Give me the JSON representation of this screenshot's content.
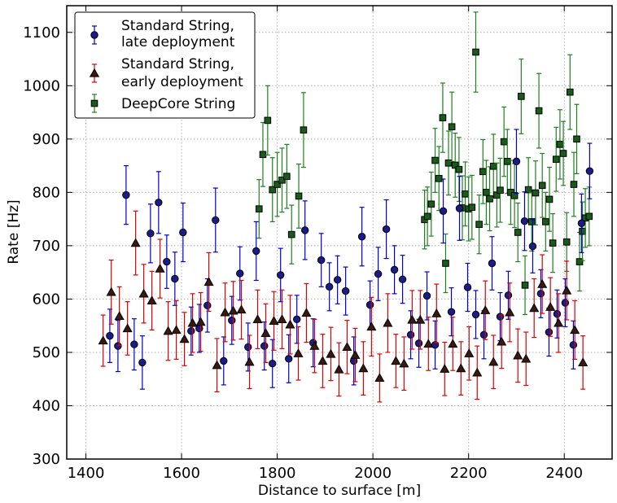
{
  "chart_data": {
    "type": "scatter",
    "xlabel": "Distance to surface [m]",
    "ylabel": "Rate [Hz]",
    "xlim": [
      1360,
      2500
    ],
    "ylim": [
      300,
      1150
    ],
    "xticks": [
      1400,
      1600,
      1800,
      2000,
      2200,
      2400
    ],
    "yticks": [
      300,
      400,
      500,
      600,
      700,
      800,
      900,
      1000,
      1100
    ],
    "grid": true,
    "legend": "top-left",
    "series": [
      {
        "name": "Standard String,\n late deployment",
        "legend_lines": [
          "Standard String,",
          " late deployment"
        ],
        "marker": "circle",
        "fill": "#1b1b8c",
        "error_color": "#0000cc",
        "points": [
          {
            "x": 1450,
            "y": 531,
            "err": 50
          },
          {
            "x": 1467,
            "y": 512,
            "err": 48
          },
          {
            "x": 1484,
            "y": 795,
            "err": 55
          },
          {
            "x": 1501,
            "y": 515,
            "err": 48
          },
          {
            "x": 1518,
            "y": 481,
            "err": 50
          },
          {
            "x": 1535,
            "y": 723,
            "err": 55
          },
          {
            "x": 1552,
            "y": 781,
            "err": 58
          },
          {
            "x": 1569,
            "y": 670,
            "err": 50
          },
          {
            "x": 1586,
            "y": 638,
            "err": 50
          },
          {
            "x": 1603,
            "y": 725,
            "err": 55
          },
          {
            "x": 1620,
            "y": 540,
            "err": 45
          },
          {
            "x": 1637,
            "y": 545,
            "err": 45
          },
          {
            "x": 1654,
            "y": 588,
            "err": 50
          },
          {
            "x": 1671,
            "y": 748,
            "err": 60
          },
          {
            "x": 1688,
            "y": 484,
            "err": 45
          },
          {
            "x": 1705,
            "y": 560,
            "err": 45
          },
          {
            "x": 1722,
            "y": 648,
            "err": 50
          },
          {
            "x": 1739,
            "y": 510,
            "err": 45
          },
          {
            "x": 1756,
            "y": 690,
            "err": 55
          },
          {
            "x": 1773,
            "y": 512,
            "err": 45
          },
          {
            "x": 1790,
            "y": 479,
            "err": 45
          },
          {
            "x": 1807,
            "y": 645,
            "err": 50
          },
          {
            "x": 1824,
            "y": 488,
            "err": 45
          },
          {
            "x": 1841,
            "y": 562,
            "err": 45
          },
          {
            "x": 1858,
            "y": 729,
            "err": 55
          },
          {
            "x": 1875,
            "y": 518,
            "err": 45
          },
          {
            "x": 1892,
            "y": 673,
            "err": 50
          },
          {
            "x": 1909,
            "y": 623,
            "err": 45
          },
          {
            "x": 1926,
            "y": 636,
            "err": 45
          },
          {
            "x": 1943,
            "y": 615,
            "err": 45
          },
          {
            "x": 1960,
            "y": 484,
            "err": 45
          },
          {
            "x": 1977,
            "y": 717,
            "err": 55
          },
          {
            "x": 1994,
            "y": 589,
            "err": 45
          },
          {
            "x": 2011,
            "y": 647,
            "err": 50
          },
          {
            "x": 2028,
            "y": 731,
            "err": 55
          },
          {
            "x": 2045,
            "y": 655,
            "err": 45
          },
          {
            "x": 2062,
            "y": 637,
            "err": 45
          },
          {
            "x": 2079,
            "y": 533,
            "err": 45
          },
          {
            "x": 2096,
            "y": 517,
            "err": 45
          },
          {
            "x": 2113,
            "y": 606,
            "err": 45
          },
          {
            "x": 2130,
            "y": 514,
            "err": 45
          },
          {
            "x": 2147,
            "y": 765,
            "err": 60
          },
          {
            "x": 2164,
            "y": 576,
            "err": 45
          },
          {
            "x": 2181,
            "y": 770,
            "err": 60
          },
          {
            "x": 2198,
            "y": 622,
            "err": 45
          },
          {
            "x": 2215,
            "y": 571,
            "err": 45
          },
          {
            "x": 2232,
            "y": 533,
            "err": 45
          },
          {
            "x": 2249,
            "y": 667,
            "err": 50
          },
          {
            "x": 2266,
            "y": 567,
            "err": 45
          },
          {
            "x": 2283,
            "y": 607,
            "err": 45
          },
          {
            "x": 2300,
            "y": 858,
            "err": 60
          },
          {
            "x": 2317,
            "y": 746,
            "err": 55
          },
          {
            "x": 2334,
            "y": 699,
            "err": 50
          },
          {
            "x": 2351,
            "y": 610,
            "err": 45
          },
          {
            "x": 2368,
            "y": 538,
            "err": 45
          },
          {
            "x": 2385,
            "y": 572,
            "err": 45
          },
          {
            "x": 2402,
            "y": 593,
            "err": 45
          },
          {
            "x": 2419,
            "y": 514,
            "err": 45
          },
          {
            "x": 2436,
            "y": 742,
            "err": 55
          },
          {
            "x": 2453,
            "y": 840,
            "err": 52
          }
        ]
      },
      {
        "name": "Standard String,\nearly deployment",
        "legend_lines": [
          "Standard String,",
          "early deployment"
        ],
        "marker": "triangle",
        "fill": "#3a1a10",
        "error_color": "#dd0000",
        "points": [
          {
            "x": 1436,
            "y": 522,
            "err": 48
          },
          {
            "x": 1453,
            "y": 613,
            "err": 60
          },
          {
            "x": 1470,
            "y": 568,
            "err": 55
          },
          {
            "x": 1487,
            "y": 545,
            "err": 50
          },
          {
            "x": 1504,
            "y": 705,
            "err": 60
          },
          {
            "x": 1521,
            "y": 610,
            "err": 55
          },
          {
            "x": 1538,
            "y": 597,
            "err": 55
          },
          {
            "x": 1555,
            "y": 657,
            "err": 55
          },
          {
            "x": 1572,
            "y": 540,
            "err": 55
          },
          {
            "x": 1589,
            "y": 542,
            "err": 55
          },
          {
            "x": 1606,
            "y": 525,
            "err": 50
          },
          {
            "x": 1623,
            "y": 555,
            "err": 55
          },
          {
            "x": 1640,
            "y": 557,
            "err": 55
          },
          {
            "x": 1657,
            "y": 632,
            "err": 55
          },
          {
            "x": 1674,
            "y": 476,
            "err": 50
          },
          {
            "x": 1691,
            "y": 575,
            "err": 55
          },
          {
            "x": 1708,
            "y": 578,
            "err": 55
          },
          {
            "x": 1725,
            "y": 580,
            "err": 55
          },
          {
            "x": 1742,
            "y": 482,
            "err": 50
          },
          {
            "x": 1759,
            "y": 562,
            "err": 55
          },
          {
            "x": 1776,
            "y": 536,
            "err": 55
          },
          {
            "x": 1793,
            "y": 559,
            "err": 55
          },
          {
            "x": 1810,
            "y": 562,
            "err": 55
          },
          {
            "x": 1827,
            "y": 552,
            "err": 55
          },
          {
            "x": 1844,
            "y": 498,
            "err": 50
          },
          {
            "x": 1861,
            "y": 574,
            "err": 55
          },
          {
            "x": 1878,
            "y": 512,
            "err": 50
          },
          {
            "x": 1895,
            "y": 484,
            "err": 50
          },
          {
            "x": 1912,
            "y": 497,
            "err": 50
          },
          {
            "x": 1929,
            "y": 468,
            "err": 50
          },
          {
            "x": 1946,
            "y": 510,
            "err": 50
          },
          {
            "x": 1963,
            "y": 495,
            "err": 50
          },
          {
            "x": 1980,
            "y": 470,
            "err": 50
          },
          {
            "x": 1997,
            "y": 548,
            "err": 55
          },
          {
            "x": 2014,
            "y": 452,
            "err": 45
          },
          {
            "x": 2031,
            "y": 555,
            "err": 55
          },
          {
            "x": 2048,
            "y": 484,
            "err": 50
          },
          {
            "x": 2065,
            "y": 479,
            "err": 50
          },
          {
            "x": 2082,
            "y": 561,
            "err": 55
          },
          {
            "x": 2099,
            "y": 561,
            "err": 55
          },
          {
            "x": 2116,
            "y": 516,
            "err": 50
          },
          {
            "x": 2133,
            "y": 573,
            "err": 55
          },
          {
            "x": 2150,
            "y": 469,
            "err": 50
          },
          {
            "x": 2167,
            "y": 516,
            "err": 50
          },
          {
            "x": 2184,
            "y": 470,
            "err": 50
          },
          {
            "x": 2201,
            "y": 498,
            "err": 50
          },
          {
            "x": 2218,
            "y": 462,
            "err": 50
          },
          {
            "x": 2235,
            "y": 579,
            "err": 55
          },
          {
            "x": 2252,
            "y": 482,
            "err": 50
          },
          {
            "x": 2269,
            "y": 520,
            "err": 50
          },
          {
            "x": 2286,
            "y": 575,
            "err": 55
          },
          {
            "x": 2303,
            "y": 494,
            "err": 50
          },
          {
            "x": 2320,
            "y": 488,
            "err": 50
          },
          {
            "x": 2337,
            "y": 583,
            "err": 55
          },
          {
            "x": 2354,
            "y": 628,
            "err": 55
          },
          {
            "x": 2371,
            "y": 585,
            "err": 55
          },
          {
            "x": 2388,
            "y": 555,
            "err": 55
          },
          {
            "x": 2405,
            "y": 616,
            "err": 55
          },
          {
            "x": 2422,
            "y": 542,
            "err": 55
          },
          {
            "x": 2439,
            "y": 481,
            "err": 50
          }
        ]
      },
      {
        "name": "DeepCore String",
        "legend_lines": [
          "DeepCore String"
        ],
        "marker": "square",
        "fill": "#1a5a1a",
        "error_color": "#1f7f1f",
        "points": [
          {
            "x": 1762,
            "y": 769,
            "err": 55
          },
          {
            "x": 1770,
            "y": 871,
            "err": 60
          },
          {
            "x": 1780,
            "y": 935,
            "err": 65
          },
          {
            "x": 1790,
            "y": 805,
            "err": 60
          },
          {
            "x": 1800,
            "y": 815,
            "err": 60
          },
          {
            "x": 1810,
            "y": 823,
            "err": 60
          },
          {
            "x": 1820,
            "y": 830,
            "err": 60
          },
          {
            "x": 1830,
            "y": 721,
            "err": 55
          },
          {
            "x": 1845,
            "y": 793,
            "err": 60
          },
          {
            "x": 1855,
            "y": 917,
            "err": 70
          },
          {
            "x": 2108,
            "y": 749,
            "err": 55
          },
          {
            "x": 2114,
            "y": 755,
            "err": 55
          },
          {
            "x": 2122,
            "y": 778,
            "err": 60
          },
          {
            "x": 2130,
            "y": 860,
            "err": 60
          },
          {
            "x": 2138,
            "y": 826,
            "err": 60
          },
          {
            "x": 2146,
            "y": 940,
            "err": 65
          },
          {
            "x": 2152,
            "y": 667,
            "err": 55
          },
          {
            "x": 2158,
            "y": 855,
            "err": 60
          },
          {
            "x": 2165,
            "y": 923,
            "err": 65
          },
          {
            "x": 2172,
            "y": 851,
            "err": 60
          },
          {
            "x": 2180,
            "y": 843,
            "err": 60
          },
          {
            "x": 2187,
            "y": 771,
            "err": 60
          },
          {
            "x": 2193,
            "y": 797,
            "err": 60
          },
          {
            "x": 2200,
            "y": 769,
            "err": 60
          },
          {
            "x": 2207,
            "y": 772,
            "err": 60
          },
          {
            "x": 2215,
            "y": 1063,
            "err": 75
          },
          {
            "x": 2222,
            "y": 740,
            "err": 55
          },
          {
            "x": 2230,
            "y": 839,
            "err": 60
          },
          {
            "x": 2237,
            "y": 800,
            "err": 60
          },
          {
            "x": 2244,
            "y": 788,
            "err": 60
          },
          {
            "x": 2252,
            "y": 849,
            "err": 60
          },
          {
            "x": 2259,
            "y": 795,
            "err": 60
          },
          {
            "x": 2266,
            "y": 804,
            "err": 60
          },
          {
            "x": 2274,
            "y": 895,
            "err": 65
          },
          {
            "x": 2281,
            "y": 858,
            "err": 60
          },
          {
            "x": 2288,
            "y": 800,
            "err": 60
          },
          {
            "x": 2296,
            "y": 794,
            "err": 60
          },
          {
            "x": 2303,
            "y": 725,
            "err": 55
          },
          {
            "x": 2310,
            "y": 980,
            "err": 70
          },
          {
            "x": 2318,
            "y": 626,
            "err": 55
          },
          {
            "x": 2325,
            "y": 805,
            "err": 60
          },
          {
            "x": 2332,
            "y": 745,
            "err": 55
          },
          {
            "x": 2340,
            "y": 799,
            "err": 60
          },
          {
            "x": 2347,
            "y": 953,
            "err": 70
          },
          {
            "x": 2354,
            "y": 813,
            "err": 60
          },
          {
            "x": 2361,
            "y": 745,
            "err": 55
          },
          {
            "x": 2369,
            "y": 787,
            "err": 60
          },
          {
            "x": 2376,
            "y": 705,
            "err": 55
          },
          {
            "x": 2383,
            "y": 862,
            "err": 60
          },
          {
            "x": 2391,
            "y": 890,
            "err": 65
          },
          {
            "x": 2398,
            "y": 873,
            "err": 60
          },
          {
            "x": 2405,
            "y": 707,
            "err": 55
          },
          {
            "x": 2412,
            "y": 988,
            "err": 70
          },
          {
            "x": 2420,
            "y": 815,
            "err": 60
          },
          {
            "x": 2426,
            "y": 900,
            "err": 65
          },
          {
            "x": 2432,
            "y": 670,
            "err": 55
          },
          {
            "x": 2438,
            "y": 727,
            "err": 55
          },
          {
            "x": 2444,
            "y": 752,
            "err": 55
          },
          {
            "x": 2452,
            "y": 755,
            "err": 55
          }
        ]
      }
    ]
  }
}
